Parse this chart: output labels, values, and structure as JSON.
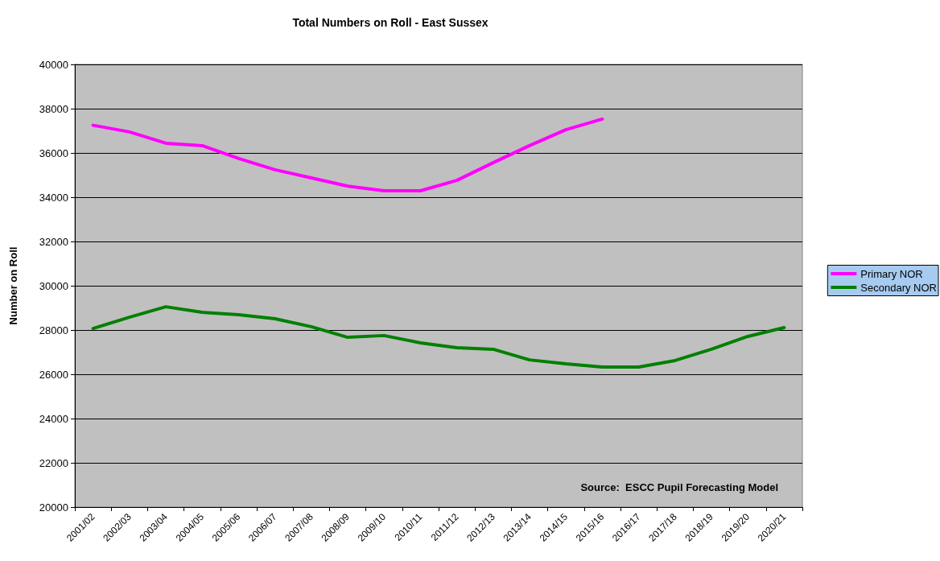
{
  "chart_data": {
    "type": "line",
    "title": "Total Numbers on Roll - East Sussex",
    "ylabel": "Number on Roll",
    "categories": [
      "2001/02",
      "2002/03",
      "2003/04",
      "2004/05",
      "2005/06",
      "2006/07",
      "2007/08",
      "2008/09",
      "2009/10",
      "2010/11",
      "2011/12",
      "2012/13",
      "2013/14",
      "2014/15",
      "2015/16",
      "2016/17",
      "2017/18",
      "2018/19",
      "2019/20",
      "2020/21"
    ],
    "series": [
      {
        "name": "Primary NOR",
        "color": "#ff00ff",
        "values": [
          37250,
          36950,
          36440,
          36330,
          35750,
          35240,
          34870,
          34500,
          34290,
          34290,
          34760,
          35560,
          36330,
          37050,
          37530,
          null,
          null,
          null,
          null,
          null
        ]
      },
      {
        "name": "Secondary NOR",
        "color": "#008000",
        "values": [
          28070,
          28580,
          29050,
          28800,
          28690,
          28510,
          28150,
          27670,
          27750,
          27420,
          27200,
          27130,
          26650,
          26470,
          26330,
          26330,
          26620,
          27130,
          27710,
          28110
        ]
      }
    ],
    "ylim": [
      20000,
      40000
    ],
    "yticks": [
      20000,
      22000,
      24000,
      26000,
      28000,
      30000,
      32000,
      34000,
      36000,
      38000,
      40000
    ],
    "grid": "y",
    "legend": "right",
    "marker": "none",
    "line_style": "solid",
    "annotations": [
      "Source:  ESCC Pupil Forecasting Model"
    ]
  }
}
